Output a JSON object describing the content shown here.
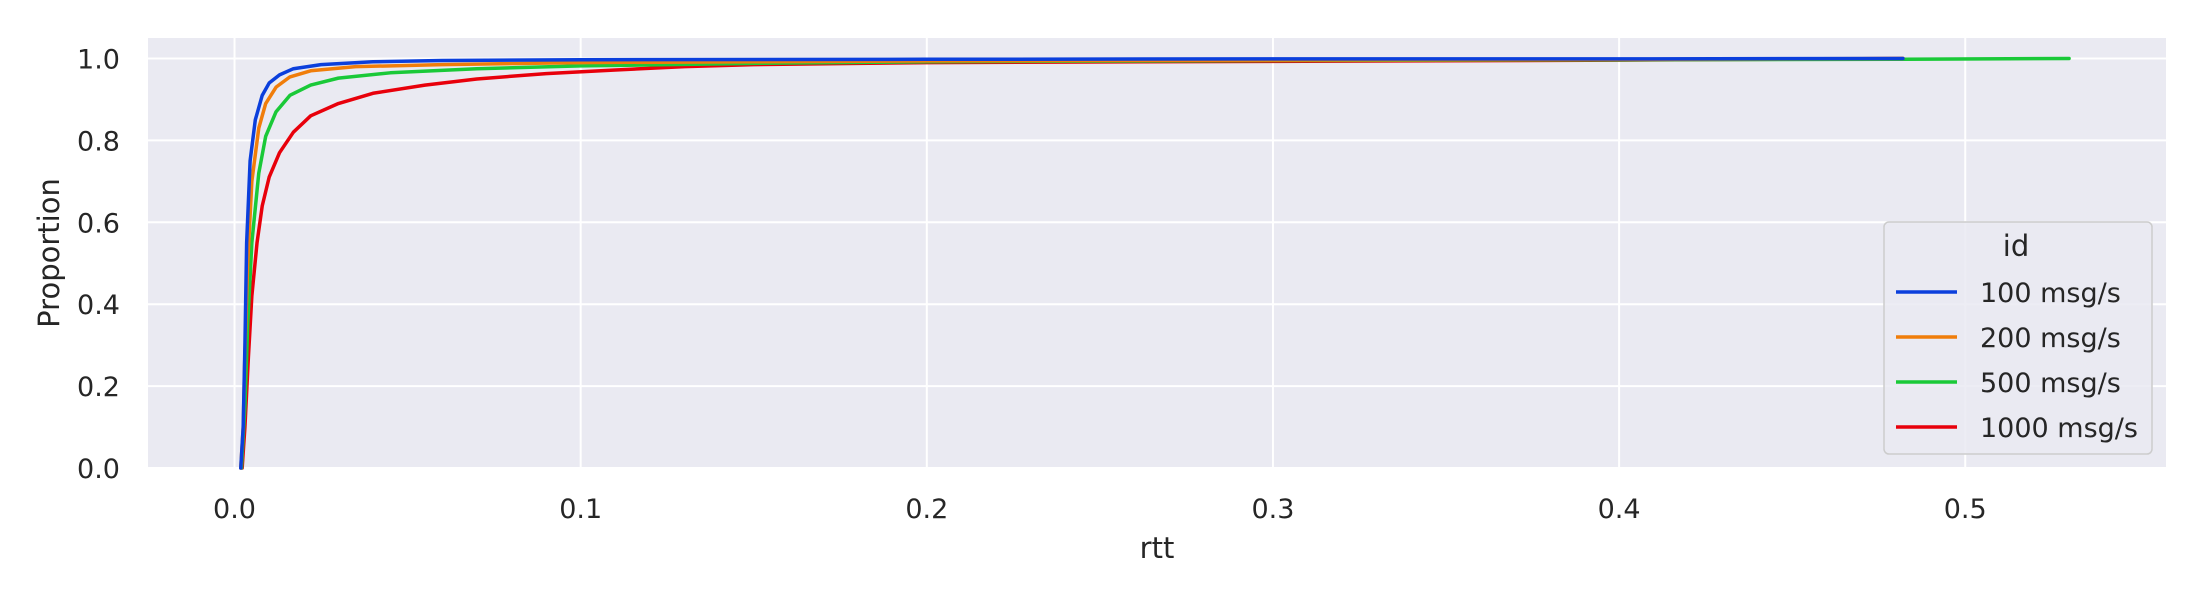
{
  "chart_data": {
    "type": "line",
    "title": "",
    "xlabel": "rtt",
    "ylabel": "Proportion",
    "xlim": [
      -0.025,
      0.558
    ],
    "ylim": [
      0.0,
      1.05
    ],
    "x_ticks": [
      0.0,
      0.1,
      0.2,
      0.3,
      0.4,
      0.5
    ],
    "x_tick_labels": [
      "0.0",
      "0.1",
      "0.2",
      "0.3",
      "0.4",
      "0.5"
    ],
    "y_ticks": [
      0.0,
      0.2,
      0.4,
      0.6,
      0.8,
      1.0
    ],
    "y_tick_labels": [
      "0.0",
      "0.2",
      "0.4",
      "0.6",
      "0.8",
      "1.0"
    ],
    "grid": true,
    "legend": {
      "title": "id",
      "placement": "center-right"
    },
    "series": [
      {
        "name": "100 msg/s",
        "color": "#0b3fdc",
        "points": [
          [
            0.0018,
            0.0
          ],
          [
            0.0025,
            0.1
          ],
          [
            0.003,
            0.3
          ],
          [
            0.0035,
            0.55
          ],
          [
            0.0045,
            0.75
          ],
          [
            0.006,
            0.85
          ],
          [
            0.008,
            0.91
          ],
          [
            0.01,
            0.94
          ],
          [
            0.013,
            0.96
          ],
          [
            0.017,
            0.975
          ],
          [
            0.025,
            0.985
          ],
          [
            0.04,
            0.992
          ],
          [
            0.06,
            0.995
          ],
          [
            0.1,
            0.997
          ],
          [
            0.2,
            0.998
          ],
          [
            0.3,
            0.999
          ],
          [
            0.4,
            0.999
          ],
          [
            0.482,
            1.0
          ]
        ]
      },
      {
        "name": "200 msg/s",
        "color": "#f07d0a",
        "points": [
          [
            0.0018,
            0.0
          ],
          [
            0.0025,
            0.1
          ],
          [
            0.003,
            0.28
          ],
          [
            0.0038,
            0.5
          ],
          [
            0.005,
            0.7
          ],
          [
            0.007,
            0.83
          ],
          [
            0.009,
            0.89
          ],
          [
            0.012,
            0.93
          ],
          [
            0.016,
            0.955
          ],
          [
            0.022,
            0.97
          ],
          [
            0.035,
            0.98
          ],
          [
            0.06,
            0.985
          ],
          [
            0.1,
            0.99
          ],
          [
            0.15,
            0.992
          ],
          [
            0.2,
            0.994
          ],
          [
            0.3,
            0.996
          ],
          [
            0.4,
            0.998
          ],
          [
            0.482,
            1.0
          ]
        ]
      },
      {
        "name": "500 msg/s",
        "color": "#1ac938",
        "points": [
          [
            0.002,
            0.0
          ],
          [
            0.003,
            0.15
          ],
          [
            0.0038,
            0.35
          ],
          [
            0.005,
            0.55
          ],
          [
            0.007,
            0.72
          ],
          [
            0.009,
            0.81
          ],
          [
            0.012,
            0.87
          ],
          [
            0.016,
            0.91
          ],
          [
            0.022,
            0.935
          ],
          [
            0.03,
            0.952
          ],
          [
            0.045,
            0.965
          ],
          [
            0.07,
            0.975
          ],
          [
            0.1,
            0.982
          ],
          [
            0.15,
            0.988
          ],
          [
            0.2,
            0.992
          ],
          [
            0.3,
            0.995
          ],
          [
            0.4,
            0.997
          ],
          [
            0.48,
            0.998
          ],
          [
            0.53,
            1.0
          ]
        ]
      },
      {
        "name": "1000 msg/s",
        "color": "#e8000b",
        "points": [
          [
            0.0022,
            0.0
          ],
          [
            0.003,
            0.1
          ],
          [
            0.004,
            0.27
          ],
          [
            0.005,
            0.42
          ],
          [
            0.0065,
            0.55
          ],
          [
            0.008,
            0.64
          ],
          [
            0.01,
            0.71
          ],
          [
            0.013,
            0.77
          ],
          [
            0.017,
            0.82
          ],
          [
            0.022,
            0.86
          ],
          [
            0.03,
            0.89
          ],
          [
            0.04,
            0.915
          ],
          [
            0.055,
            0.935
          ],
          [
            0.07,
            0.95
          ],
          [
            0.09,
            0.963
          ],
          [
            0.11,
            0.972
          ],
          [
            0.13,
            0.98
          ],
          [
            0.15,
            0.985
          ],
          [
            0.2,
            0.99
          ],
          [
            0.3,
            0.993
          ],
          [
            0.4,
            0.996
          ],
          [
            0.482,
            1.0
          ]
        ]
      }
    ]
  }
}
